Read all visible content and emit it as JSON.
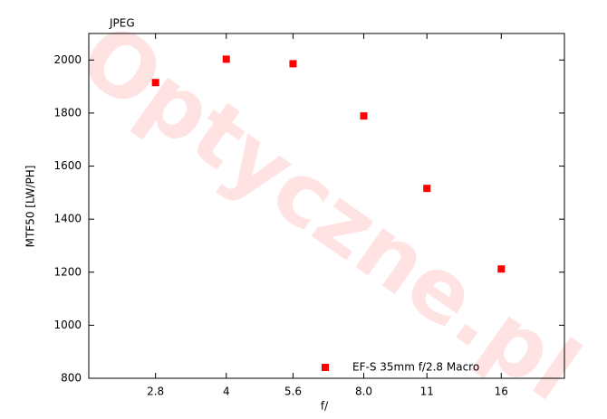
{
  "chart_data": {
    "type": "scatter",
    "title": "JPEG",
    "watermark": "Optyczne.pl",
    "x_label": "f/",
    "y_label": "MTF50 [LW/PH]",
    "xscale": "log",
    "xlim": [
      2,
      22
    ],
    "xticks": [
      2.8,
      4,
      5.6,
      {
        "value": 8,
        "label": "8.0"
      },
      11,
      16
    ],
    "ylim": [
      800,
      2100
    ],
    "yticks": [
      800,
      1000,
      1200,
      1400,
      1600,
      1800,
      2000
    ],
    "legend": "bottom",
    "series": [
      {
        "name": "EF-S 35mm f/2.8 Macro",
        "color": "#ff0000",
        "x": [
          2.8,
          4,
          5.6,
          8,
          11,
          16
        ],
        "values": [
          1915,
          2003,
          1986,
          1789,
          1516,
          1212
        ]
      }
    ]
  }
}
